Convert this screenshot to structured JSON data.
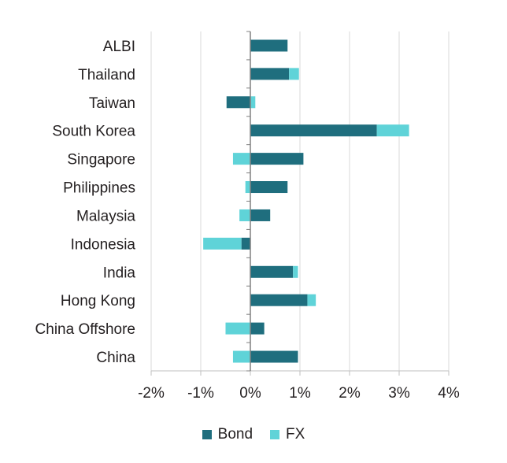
{
  "chart_data": {
    "type": "bar",
    "orientation": "horizontal",
    "stacked": true,
    "title": "",
    "xlabel": "",
    "ylabel": "",
    "categories": [
      "ALBI",
      "Thailand",
      "Taiwan",
      "South Korea",
      "Singapore",
      "Philippines",
      "Malaysia",
      "Indonesia",
      "India",
      "Hong Kong",
      "China Offshore",
      "China"
    ],
    "series": [
      {
        "name": "Bond",
        "color": "#1f6e7e",
        "values": [
          0.75,
          0.78,
          -0.48,
          2.55,
          1.07,
          0.75,
          0.4,
          -0.18,
          0.86,
          1.15,
          0.28,
          0.96
        ]
      },
      {
        "name": "FX",
        "color": "#5fd3d8",
        "values": [
          0.0,
          0.2,
          0.1,
          0.65,
          -0.35,
          -0.1,
          -0.22,
          -0.77,
          0.1,
          0.17,
          -0.5,
          -0.35
        ]
      }
    ],
    "xlim": [
      -2,
      4
    ],
    "xticks": [
      -2,
      -1,
      0,
      1,
      2,
      3,
      4
    ],
    "xtick_labels": [
      "-2%",
      "-1%",
      "0%",
      "1%",
      "2%",
      "3%",
      "4%"
    ],
    "grid": true,
    "legend_position": "bottom"
  }
}
